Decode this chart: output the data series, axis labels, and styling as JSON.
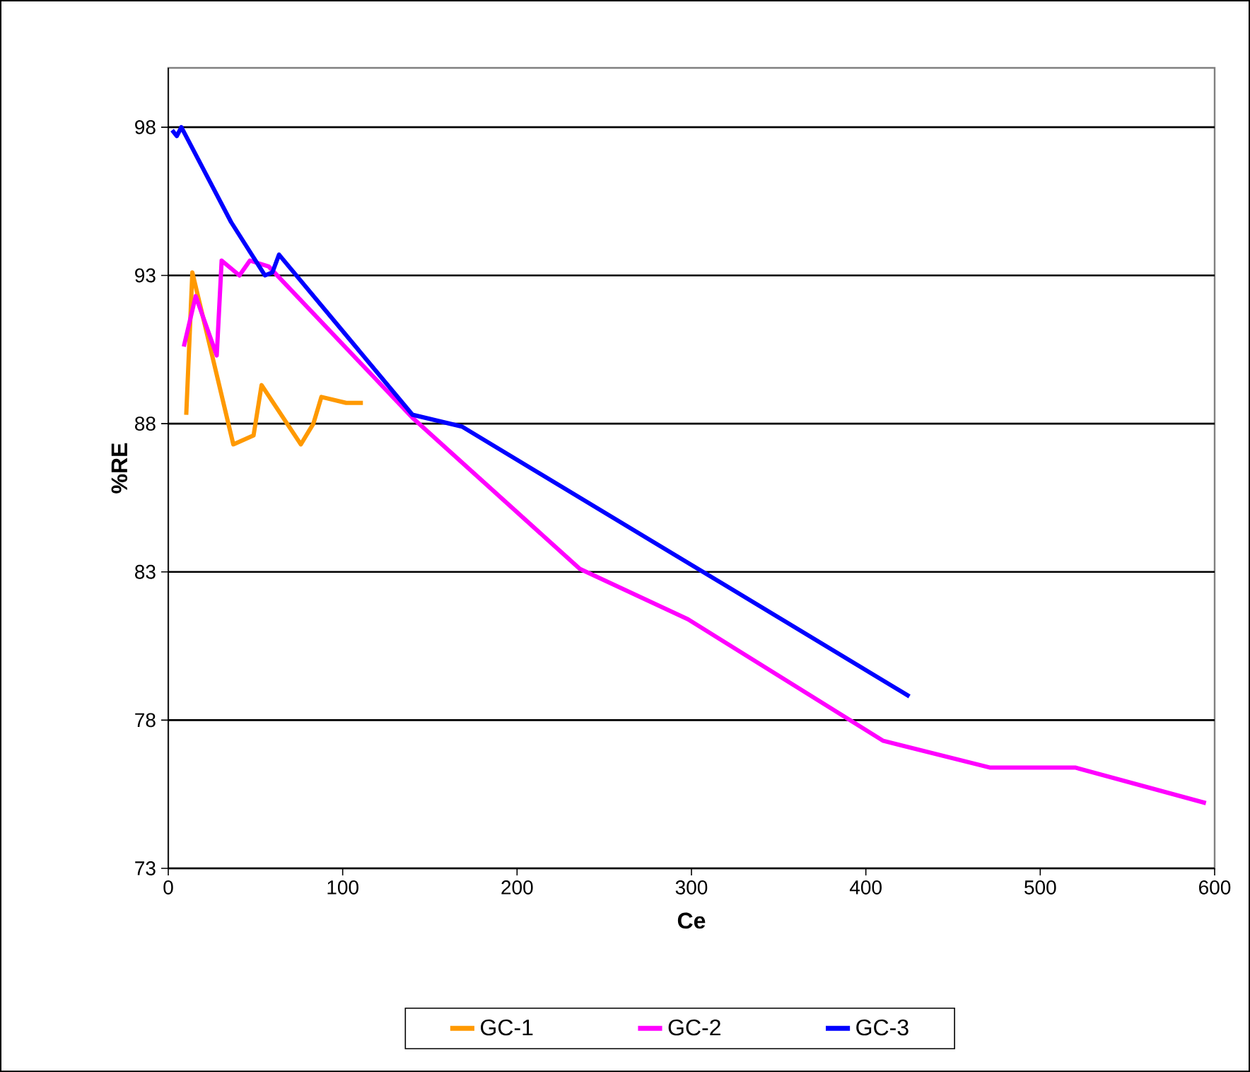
{
  "chart_data": {
    "type": "line",
    "xlabel": "Ce",
    "ylabel": "%RE",
    "xlim": [
      0,
      600
    ],
    "ylim": [
      73,
      100
    ],
    "xticks": [
      0,
      100,
      200,
      300,
      400,
      500,
      600
    ],
    "yticks": [
      73,
      78,
      83,
      88,
      93,
      98
    ],
    "grid": "y",
    "legend": "bottom",
    "marker": "none",
    "line_style": "solid",
    "series": [
      {
        "name": "GC-1",
        "color": "#ff9900",
        "x": [
          10.3,
          13.8,
          37.3,
          48.9,
          53.5,
          76,
          83.2,
          87.8,
          102,
          111.6
        ],
        "values": [
          88.3,
          93.1,
          87.3,
          87.6,
          89.3,
          87.3,
          88.0,
          88.9,
          88.7,
          88.7
        ]
      },
      {
        "name": "GC-2",
        "color": "#ff00ff",
        "x": [
          8.9,
          15.7,
          27.8,
          30.6,
          40.8,
          46.8,
          57.6,
          140,
          236,
          298,
          410,
          471,
          520,
          595
        ],
        "values": [
          90.6,
          92.3,
          90.3,
          93.5,
          93.0,
          93.5,
          93.3,
          88.2,
          83.1,
          81.4,
          77.3,
          76.4,
          76.4,
          75.2
        ]
      },
      {
        "name": "GC-3",
        "color": "#0000ff",
        "x": [
          2.2,
          4.9,
          7.5,
          36,
          55.4,
          59.7,
          63.5,
          140,
          168.4,
          425
        ],
        "values": [
          97.9,
          97.7,
          98.0,
          94.8,
          93.0,
          93.1,
          93.7,
          88.3,
          87.9,
          78.8
        ]
      }
    ]
  }
}
